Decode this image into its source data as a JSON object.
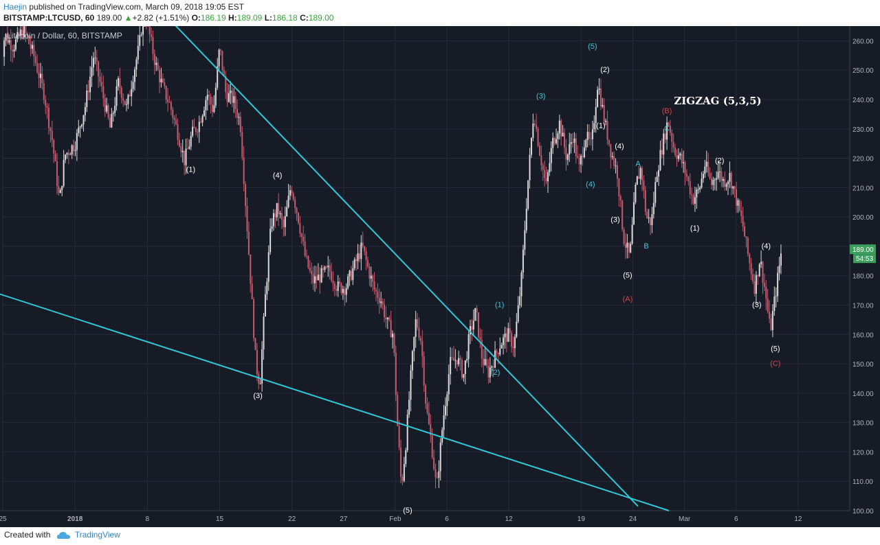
{
  "header": {
    "author": "Haejin",
    "published_text": "published on TradingView.com, March 09, 2018 19:05 EST",
    "symbol": "BITSTAMP:LTCUSD, 60",
    "last": "189.00",
    "change_arrow": "▲",
    "change": "+2.82 (+1.51%)",
    "open_label": "O:",
    "open": "186.19",
    "high_label": "H:",
    "high": "189.09",
    "low_label": "L:",
    "low": "186.18",
    "close_label": "C:",
    "close": "189.00"
  },
  "footer": {
    "created_text": "Created with",
    "brand": "TradingView"
  },
  "colors": {
    "background": "#171b26",
    "grid": "#262b38",
    "up_candle": "#dcdcdc",
    "down_candle": "#c45c70",
    "trendline": "#2ec9d8",
    "wave_white": "#ffffff",
    "wave_cyan": "#46c6d6",
    "wave_red": "#d44848",
    "price_badge": "#3a9e5c",
    "axis_text": "#b0b4bc"
  },
  "chart_data": {
    "type": "candlestick",
    "legend_text": "Litecoin / Dollar, 60, BITSTAMP",
    "annotation_title": "ZIGZAG (5,3,5)",
    "ylim": [
      100,
      265
    ],
    "yticks": [
      "100.00",
      "110.00",
      "120.00",
      "130.00",
      "140.00",
      "150.00",
      "160.00",
      "170.00",
      "180.00",
      "190.00",
      "200.00",
      "210.00",
      "220.00",
      "230.00",
      "240.00",
      "250.00",
      "260.00"
    ],
    "xlim_days": [
      -7,
      75
    ],
    "xticks": [
      {
        "label": "25",
        "day": -7
      },
      {
        "label": "2018",
        "day": 0
      },
      {
        "label": "8",
        "day": 7
      },
      {
        "label": "15",
        "day": 14
      },
      {
        "label": "22",
        "day": 21
      },
      {
        "label": "27",
        "day": 26
      },
      {
        "label": "Feb",
        "day": 31
      },
      {
        "label": "6",
        "day": 36
      },
      {
        "label": "12",
        "day": 42
      },
      {
        "label": "19",
        "day": 49
      },
      {
        "label": "24",
        "day": 54
      },
      {
        "label": "Mar",
        "day": 59
      },
      {
        "label": "6",
        "day": 64
      },
      {
        "label": "12",
        "day": 70
      }
    ],
    "last_price": "189.00",
    "countdown": "54:53",
    "price_path": [
      [
        -7.5,
        245
      ],
      [
        -6.8,
        262
      ],
      [
        -6,
        258
      ],
      [
        -5,
        264
      ],
      [
        -4,
        255
      ],
      [
        -3,
        242
      ],
      [
        -2.2,
        226
      ],
      [
        -1.5,
        205
      ],
      [
        -1,
        221
      ],
      [
        0,
        225
      ],
      [
        1,
        238
      ],
      [
        1.8,
        255
      ],
      [
        2.6,
        243
      ],
      [
        3.4,
        230
      ],
      [
        4.2,
        246
      ],
      [
        5,
        237
      ],
      [
        5.6,
        248
      ],
      [
        6.2,
        258
      ],
      [
        6.7,
        272
      ],
      [
        7.2,
        262
      ],
      [
        7.8,
        252
      ],
      [
        8.5,
        244
      ],
      [
        9.2,
        238
      ],
      [
        10,
        228
      ],
      [
        10.6,
        219
      ],
      [
        11.3,
        228
      ],
      [
        12,
        232
      ],
      [
        12.8,
        242
      ],
      [
        13.4,
        236
      ],
      [
        14,
        258
      ],
      [
        14.6,
        242
      ],
      [
        15.3,
        240
      ],
      [
        16,
        232
      ],
      [
        16.5,
        205
      ],
      [
        17,
        178
      ],
      [
        17.5,
        150
      ],
      [
        17.9,
        143
      ],
      [
        18.4,
        172
      ],
      [
        19,
        198
      ],
      [
        19.6,
        203
      ],
      [
        20.2,
        196
      ],
      [
        20.9,
        211
      ],
      [
        21.6,
        200
      ],
      [
        22.3,
        186
      ],
      [
        23,
        178
      ],
      [
        23.8,
        180
      ],
      [
        24.6,
        182
      ],
      [
        25.4,
        176
      ],
      [
        26.2,
        176
      ],
      [
        27,
        183
      ],
      [
        27.8,
        190
      ],
      [
        28.4,
        182
      ],
      [
        29,
        175
      ],
      [
        29.6,
        172
      ],
      [
        30.2,
        164
      ],
      [
        30.8,
        160
      ],
      [
        31.2,
        130
      ],
      [
        31.6,
        108
      ],
      [
        32,
        122
      ],
      [
        32.6,
        150
      ],
      [
        33,
        165
      ],
      [
        33.5,
        158
      ],
      [
        34,
        135
      ],
      [
        34.5,
        123
      ],
      [
        35,
        107
      ],
      [
        35.6,
        130
      ],
      [
        36.3,
        150
      ],
      [
        37,
        152
      ],
      [
        37.6,
        146
      ],
      [
        38.2,
        160
      ],
      [
        38.8,
        168
      ],
      [
        39.4,
        152
      ],
      [
        40,
        147
      ],
      [
        40.6,
        152
      ],
      [
        41.2,
        157
      ],
      [
        41.9,
        160
      ],
      [
        42.5,
        156
      ],
      [
        43.2,
        178
      ],
      [
        43.8,
        210
      ],
      [
        44.4,
        236
      ],
      [
        45,
        222
      ],
      [
        45.6,
        210
      ],
      [
        46.2,
        225
      ],
      [
        46.9,
        232
      ],
      [
        47.6,
        220
      ],
      [
        48.2,
        228
      ],
      [
        48.8,
        216
      ],
      [
        49.4,
        228
      ],
      [
        50,
        224
      ],
      [
        50.6,
        246
      ],
      [
        51.3,
        232
      ],
      [
        51.9,
        222
      ],
      [
        52.5,
        215
      ],
      [
        53.1,
        193
      ],
      [
        53.7,
        186
      ],
      [
        54.3,
        211
      ],
      [
        54.8,
        217
      ],
      [
        55.3,
        200
      ],
      [
        55.8,
        198
      ],
      [
        56.3,
        215
      ],
      [
        56.9,
        225
      ],
      [
        57.4,
        233
      ],
      [
        58,
        223
      ],
      [
        58.6,
        220
      ],
      [
        59.2,
        214
      ],
      [
        59.8,
        206
      ],
      [
        60.4,
        209
      ],
      [
        61,
        218
      ],
      [
        61.6,
        211
      ],
      [
        62.2,
        216
      ],
      [
        62.8,
        212
      ],
      [
        63.4,
        214
      ],
      [
        64,
        206
      ],
      [
        64.6,
        198
      ],
      [
        65.2,
        186
      ],
      [
        65.8,
        176
      ],
      [
        66.3,
        186
      ],
      [
        66.8,
        175
      ],
      [
        67.3,
        161
      ],
      [
        67.9,
        176
      ],
      [
        68.4,
        189
      ]
    ],
    "trendlines": [
      {
        "name": "upper",
        "p1": [
          9.5,
          266
        ],
        "p2": [
          54.5,
          101.5
        ]
      },
      {
        "name": "lower",
        "p1": [
          -7.5,
          174
        ],
        "p2": [
          57.5,
          100
        ]
      }
    ],
    "wave_labels": [
      {
        "text": "(1)",
        "day": 11.2,
        "price": 216,
        "color": "white"
      },
      {
        "text": "(4)",
        "day": 19.6,
        "price": 214,
        "color": "white"
      },
      {
        "text": "(3)",
        "day": 17.7,
        "price": 139,
        "color": "white"
      },
      {
        "text": "(5)",
        "day": 32.2,
        "price": 100,
        "color": "white"
      },
      {
        "text": "(1)",
        "day": 41.1,
        "price": 170,
        "color": "cyan"
      },
      {
        "text": "(2)",
        "day": 40.7,
        "price": 147,
        "color": "cyan"
      },
      {
        "text": "(3)",
        "day": 45.1,
        "price": 241,
        "color": "cyan"
      },
      {
        "text": "(5)",
        "day": 50.1,
        "price": 258,
        "color": "cyan"
      },
      {
        "text": "(2)",
        "day": 51.3,
        "price": 250,
        "color": "white"
      },
      {
        "text": "(1)",
        "day": 50.9,
        "price": 231,
        "color": "white"
      },
      {
        "text": "(4)",
        "day": 49.9,
        "price": 211,
        "color": "cyan"
      },
      {
        "text": "(4)",
        "day": 52.7,
        "price": 224,
        "color": "white"
      },
      {
        "text": "(3)",
        "day": 52.3,
        "price": 199,
        "color": "white"
      },
      {
        "text": "(5)",
        "day": 53.5,
        "price": 180,
        "color": "white"
      },
      {
        "text": "(A)",
        "day": 53.5,
        "price": 172,
        "color": "red"
      },
      {
        "text": "A",
        "day": 54.5,
        "price": 218,
        "color": "cyan"
      },
      {
        "text": "B",
        "day": 55.3,
        "price": 190,
        "color": "cyan"
      },
      {
        "text": "C",
        "day": 57.3,
        "price": 230,
        "color": "cyan"
      },
      {
        "text": "(B)",
        "day": 57.3,
        "price": 236,
        "color": "red"
      },
      {
        "text": "(1)",
        "day": 60.0,
        "price": 196,
        "color": "white"
      },
      {
        "text": "(2)",
        "day": 62.4,
        "price": 219,
        "color": "white"
      },
      {
        "text": "(4)",
        "day": 66.9,
        "price": 190,
        "color": "white"
      },
      {
        "text": "(3)",
        "day": 66.0,
        "price": 170,
        "color": "white"
      },
      {
        "text": "(5)",
        "day": 67.8,
        "price": 155,
        "color": "white"
      },
      {
        "text": "(C)",
        "day": 67.8,
        "price": 150,
        "color": "red"
      }
    ]
  }
}
